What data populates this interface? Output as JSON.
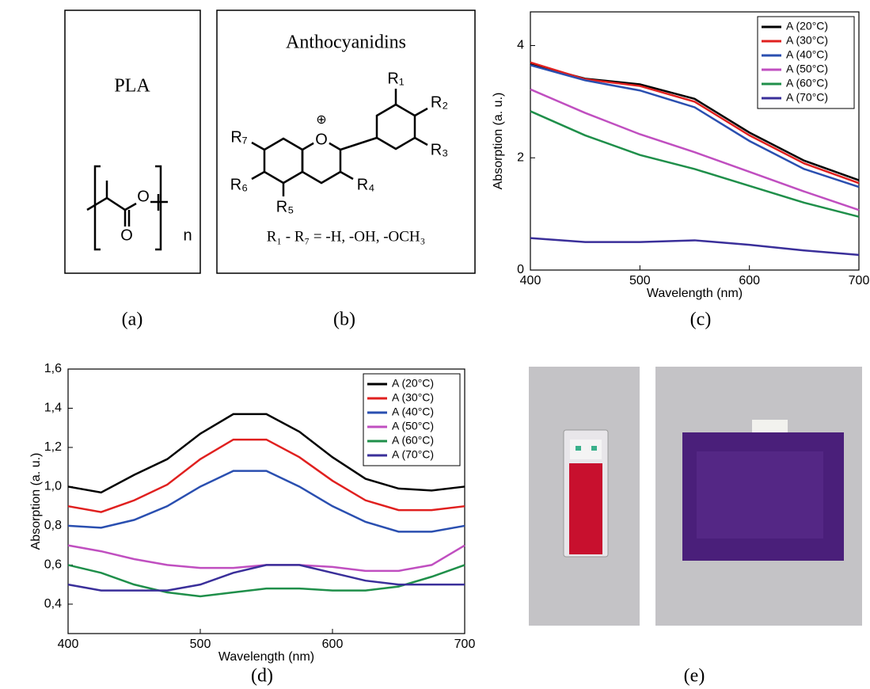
{
  "panel_a": {
    "title": "PLA",
    "atoms": [
      "O",
      "O"
    ],
    "repeat": "n",
    "caption": "(a)"
  },
  "panel_b": {
    "title": "Anthocyanidins",
    "charge": "⊕",
    "ring_atom": "O",
    "substituents": [
      "R₁",
      "R₂",
      "R₃",
      "R₄",
      "R₅",
      "R₆",
      "R₇"
    ],
    "formula": "R₁ - R₇ = -H, -OH, -OCH₃",
    "caption": "(b)"
  },
  "chart_data": [
    {
      "type": "line",
      "caption": "(c)",
      "xlabel": "Wavelength (nm)",
      "ylabel": "Absorption (a. u.)",
      "x": [
        400,
        450,
        500,
        550,
        600,
        650,
        700
      ],
      "xlim": [
        400,
        700
      ],
      "xticks": [
        400,
        500,
        600,
        700
      ],
      "ylim": [
        0,
        4.6
      ],
      "yticks": [
        0,
        2,
        4
      ],
      "legend": "upper right",
      "series": [
        {
          "name": "A (20°C)",
          "color": "#000000",
          "values": [
            3.67,
            3.41,
            3.31,
            3.05,
            2.45,
            1.95,
            1.6
          ]
        },
        {
          "name": "A (30°C)",
          "color": "#e0201f",
          "values": [
            3.7,
            3.4,
            3.28,
            3.0,
            2.4,
            1.9,
            1.55
          ]
        },
        {
          "name": "A (40°C)",
          "color": "#2a4fb0",
          "values": [
            3.65,
            3.38,
            3.2,
            2.9,
            2.3,
            1.8,
            1.48
          ]
        },
        {
          "name": "A (50°C)",
          "color": "#c04fc0",
          "values": [
            3.22,
            2.8,
            2.42,
            2.1,
            1.75,
            1.4,
            1.07
          ]
        },
        {
          "name": "A (60°C)",
          "color": "#1f8f4a",
          "values": [
            2.83,
            2.4,
            2.05,
            1.8,
            1.5,
            1.2,
            0.95
          ]
        },
        {
          "name": "A (70°C)",
          "color": "#3a2f9a",
          "values": [
            0.57,
            0.5,
            0.5,
            0.53,
            0.45,
            0.35,
            0.27
          ]
        }
      ]
    },
    {
      "type": "line",
      "caption": "(d)",
      "xlabel": "Wavelength (nm)",
      "ylabel": "Absorption (a. u.)",
      "x": [
        400,
        425,
        450,
        475,
        500,
        525,
        550,
        575,
        600,
        625,
        650,
        675,
        700
      ],
      "xlim": [
        400,
        700
      ],
      "xticks": [
        400,
        500,
        600,
        700
      ],
      "ylim": [
        0.25,
        1.6
      ],
      "yticks": [
        {
          "value": 0.4,
          "label": "0,4"
        },
        {
          "value": 0.6,
          "label": "0,6"
        },
        {
          "value": 0.8,
          "label": "0,8"
        },
        {
          "value": 1.0,
          "label": "1,0"
        },
        {
          "value": 1.2,
          "label": "1,2"
        },
        {
          "value": 1.4,
          "label": "1,4"
        },
        {
          "value": 1.6,
          "label": "1,6"
        }
      ],
      "legend": "upper right",
      "series": [
        {
          "name": "A (20°C)",
          "color": "#000000",
          "values": [
            1.0,
            0.97,
            1.06,
            1.14,
            1.27,
            1.37,
            1.37,
            1.28,
            1.15,
            1.04,
            0.99,
            0.98,
            1.0
          ]
        },
        {
          "name": "A (30°C)",
          "color": "#e0201f",
          "values": [
            0.9,
            0.87,
            0.93,
            1.01,
            1.14,
            1.24,
            1.24,
            1.15,
            1.03,
            0.93,
            0.88,
            0.88,
            0.9
          ]
        },
        {
          "name": "A (40°C)",
          "color": "#2a4fb0",
          "values": [
            0.8,
            0.79,
            0.83,
            0.9,
            1.0,
            1.08,
            1.08,
            1.0,
            0.9,
            0.82,
            0.77,
            0.77,
            0.8
          ]
        },
        {
          "name": "A (50°C)",
          "color": "#c04fc0",
          "values": [
            0.7,
            0.67,
            0.63,
            0.6,
            0.585,
            0.585,
            0.6,
            0.6,
            0.59,
            0.57,
            0.57,
            0.6,
            0.7
          ]
        },
        {
          "name": "A (60°C)",
          "color": "#1f8f4a",
          "values": [
            0.6,
            0.56,
            0.5,
            0.46,
            0.44,
            0.46,
            0.48,
            0.48,
            0.47,
            0.47,
            0.49,
            0.54,
            0.6
          ]
        },
        {
          "name": "A (70°C)",
          "color": "#3a2f9a",
          "values": [
            0.5,
            0.47,
            0.47,
            0.47,
            0.5,
            0.56,
            0.6,
            0.6,
            0.56,
            0.52,
            0.5,
            0.5,
            0.5
          ]
        }
      ]
    }
  ],
  "photo": {
    "caption": "(e)"
  }
}
